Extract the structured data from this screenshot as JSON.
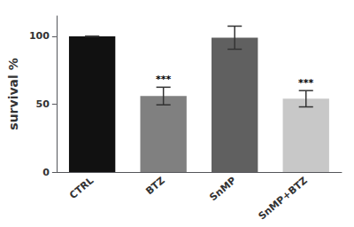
{
  "chart_data": {
    "type": "bar",
    "categories": [
      "CTRL",
      "BTZ",
      "SnMP",
      "SnMP+BTZ"
    ],
    "values": [
      100.0,
      56.0,
      99.0,
      54.0
    ],
    "errors": [
      0.0,
      6.5,
      8.5,
      6.0
    ],
    "significance": [
      null,
      "***",
      null,
      "***"
    ],
    "colors": [
      "#111111",
      "#808080",
      "#606060",
      "#c8c8c8"
    ],
    "ylabel": "survival %",
    "ylim": [
      0,
      115
    ],
    "yticks": [
      0,
      50,
      100
    ],
    "grid": false
  }
}
